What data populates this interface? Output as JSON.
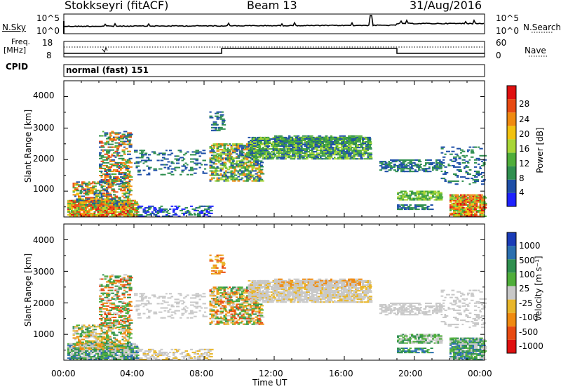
{
  "header": {
    "station": "Stokkseyri (fitACF)",
    "beam": "Beam 13",
    "date": "31/Aug/2016"
  },
  "noise_panel": {
    "left_label": "N.Sky",
    "right_label": "N.Search",
    "ticks_left": [
      "10^5",
      "10^0"
    ],
    "ticks_right": [
      "10^5",
      "10^0"
    ]
  },
  "freq_panel": {
    "left_label_1": "Freq.",
    "left_label_2": "[MHz]",
    "ticks_left": [
      "18",
      "8"
    ],
    "ticks_right": [
      "60",
      "0"
    ],
    "right_label": "Nave"
  },
  "cpid": {
    "label": "CPID",
    "mode": "normal (fast) 151"
  },
  "chart_data": [
    {
      "type": "heatmap",
      "title": "",
      "ylabel": "Slant Range [km]",
      "y_ticks": [
        "1000",
        "2000",
        "3000",
        "4000"
      ],
      "ylim": [
        180,
        4500
      ],
      "colorbar": {
        "label": "Power [dB]",
        "ticks": [
          "4",
          "8",
          "12",
          "16",
          "20",
          "24",
          "28"
        ],
        "colors": [
          "#1e22ff",
          "#1e4fa8",
          "#2f8f4f",
          "#4fae3a",
          "#a8d636",
          "#f2c20f",
          "#f08a10",
          "#e84a12",
          "#e01010"
        ]
      }
    },
    {
      "type": "heatmap",
      "title": "",
      "ylabel": "Slant Range [km]",
      "y_ticks": [
        "1000",
        "2000",
        "3000",
        "4000"
      ],
      "ylim": [
        180,
        4500
      ],
      "colorbar": {
        "label": "Velocity [m s⁻¹]",
        "ticks": [
          "1000",
          "500",
          "100",
          "25",
          "-25",
          "-100",
          "-500",
          "-1000"
        ],
        "colors": [
          "#1a3cb8",
          "#2a6fb0",
          "#2f8f4f",
          "#4fae3a",
          "#c8c8c8",
          "#e8b62a",
          "#f08a10",
          "#e84a12",
          "#e01010"
        ]
      }
    }
  ],
  "x_axis": {
    "ticks": [
      "00:00",
      "04:00",
      "08:00",
      "12:00",
      "16:00",
      "20:00",
      "00:00"
    ],
    "label": "Time UT"
  }
}
